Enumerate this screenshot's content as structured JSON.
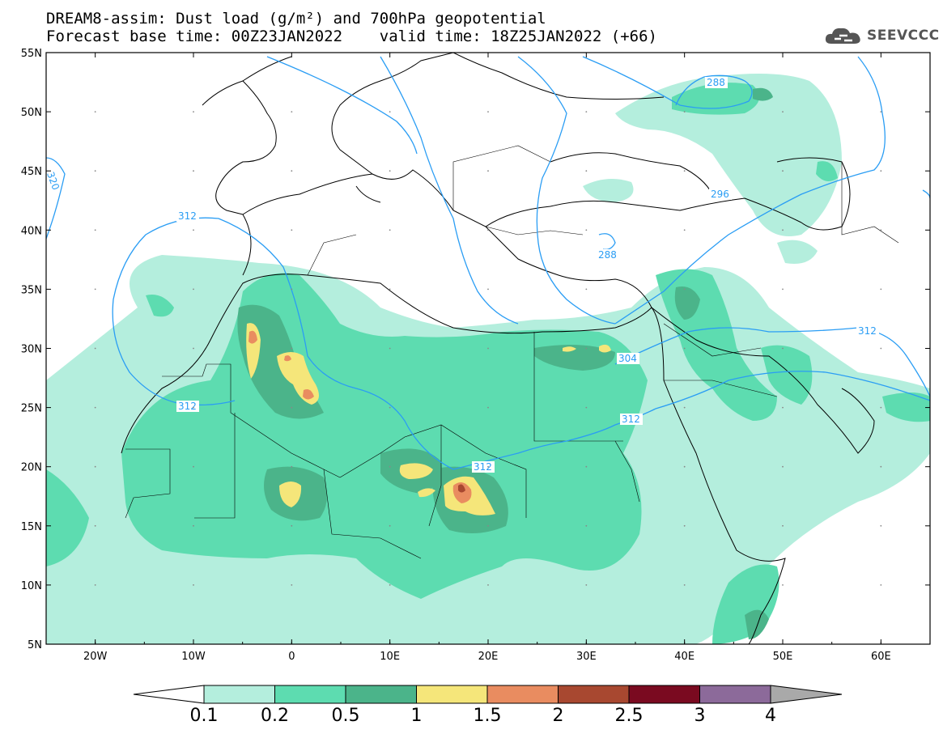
{
  "header": {
    "title_line1": "DREAM8-assim: Dust load (g/m²) and 700hPa geopotential",
    "title_line2": "Forecast base time: 00Z23JAN2022    valid time: 18Z25JAN2022 (+66)",
    "logo_text": "SEEVCCC"
  },
  "map": {
    "lat_labels": [
      "55N",
      "50N",
      "45N",
      "40N",
      "35N",
      "30N",
      "25N",
      "20N",
      "15N",
      "10N",
      "5N"
    ],
    "lon_labels": [
      "20W",
      "10W",
      "0",
      "10E",
      "20E",
      "30E",
      "40E",
      "50E",
      "60E"
    ],
    "contour_labels": [
      "320",
      "312",
      "312",
      "312",
      "312",
      "312",
      "288",
      "288",
      "296",
      "304",
      "312"
    ],
    "contour_color": "#2a9df4"
  },
  "colorbar": {
    "labels": [
      "0.1",
      "0.2",
      "0.5",
      "1",
      "1.5",
      "2",
      "2.5",
      "3",
      "4"
    ],
    "colors": [
      "#ffffff",
      "#b4eedd",
      "#5ddcb0",
      "#4bb48a",
      "#f5e67a",
      "#e98c60",
      "#a84830",
      "#7a0a20",
      "#8c6a9a",
      "#a9a9a9"
    ]
  }
}
